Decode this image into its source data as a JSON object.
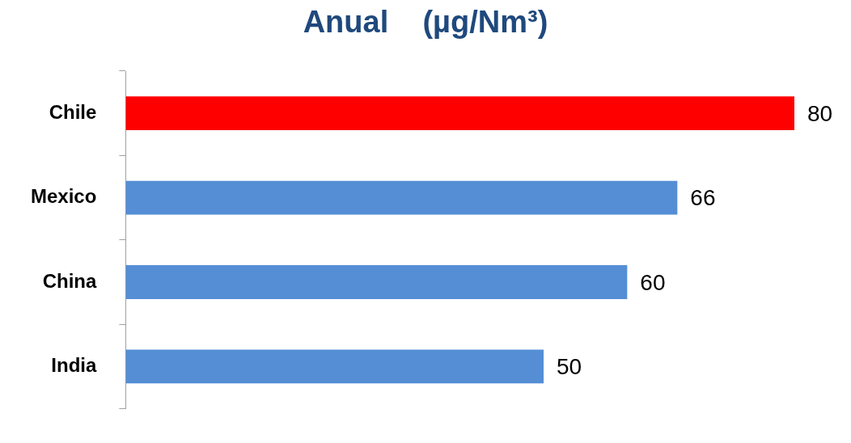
{
  "chart_data": {
    "type": "bar",
    "orientation": "horizontal",
    "title": "Anual    (µg/Nm³)",
    "categories": [
      "Chile",
      "Mexico",
      "China",
      "India"
    ],
    "values": [
      80,
      66,
      60,
      50
    ],
    "colors": [
      "#ff0000",
      "#558ed5",
      "#558ed5",
      "#558ed5"
    ],
    "data_labels": true
  }
}
